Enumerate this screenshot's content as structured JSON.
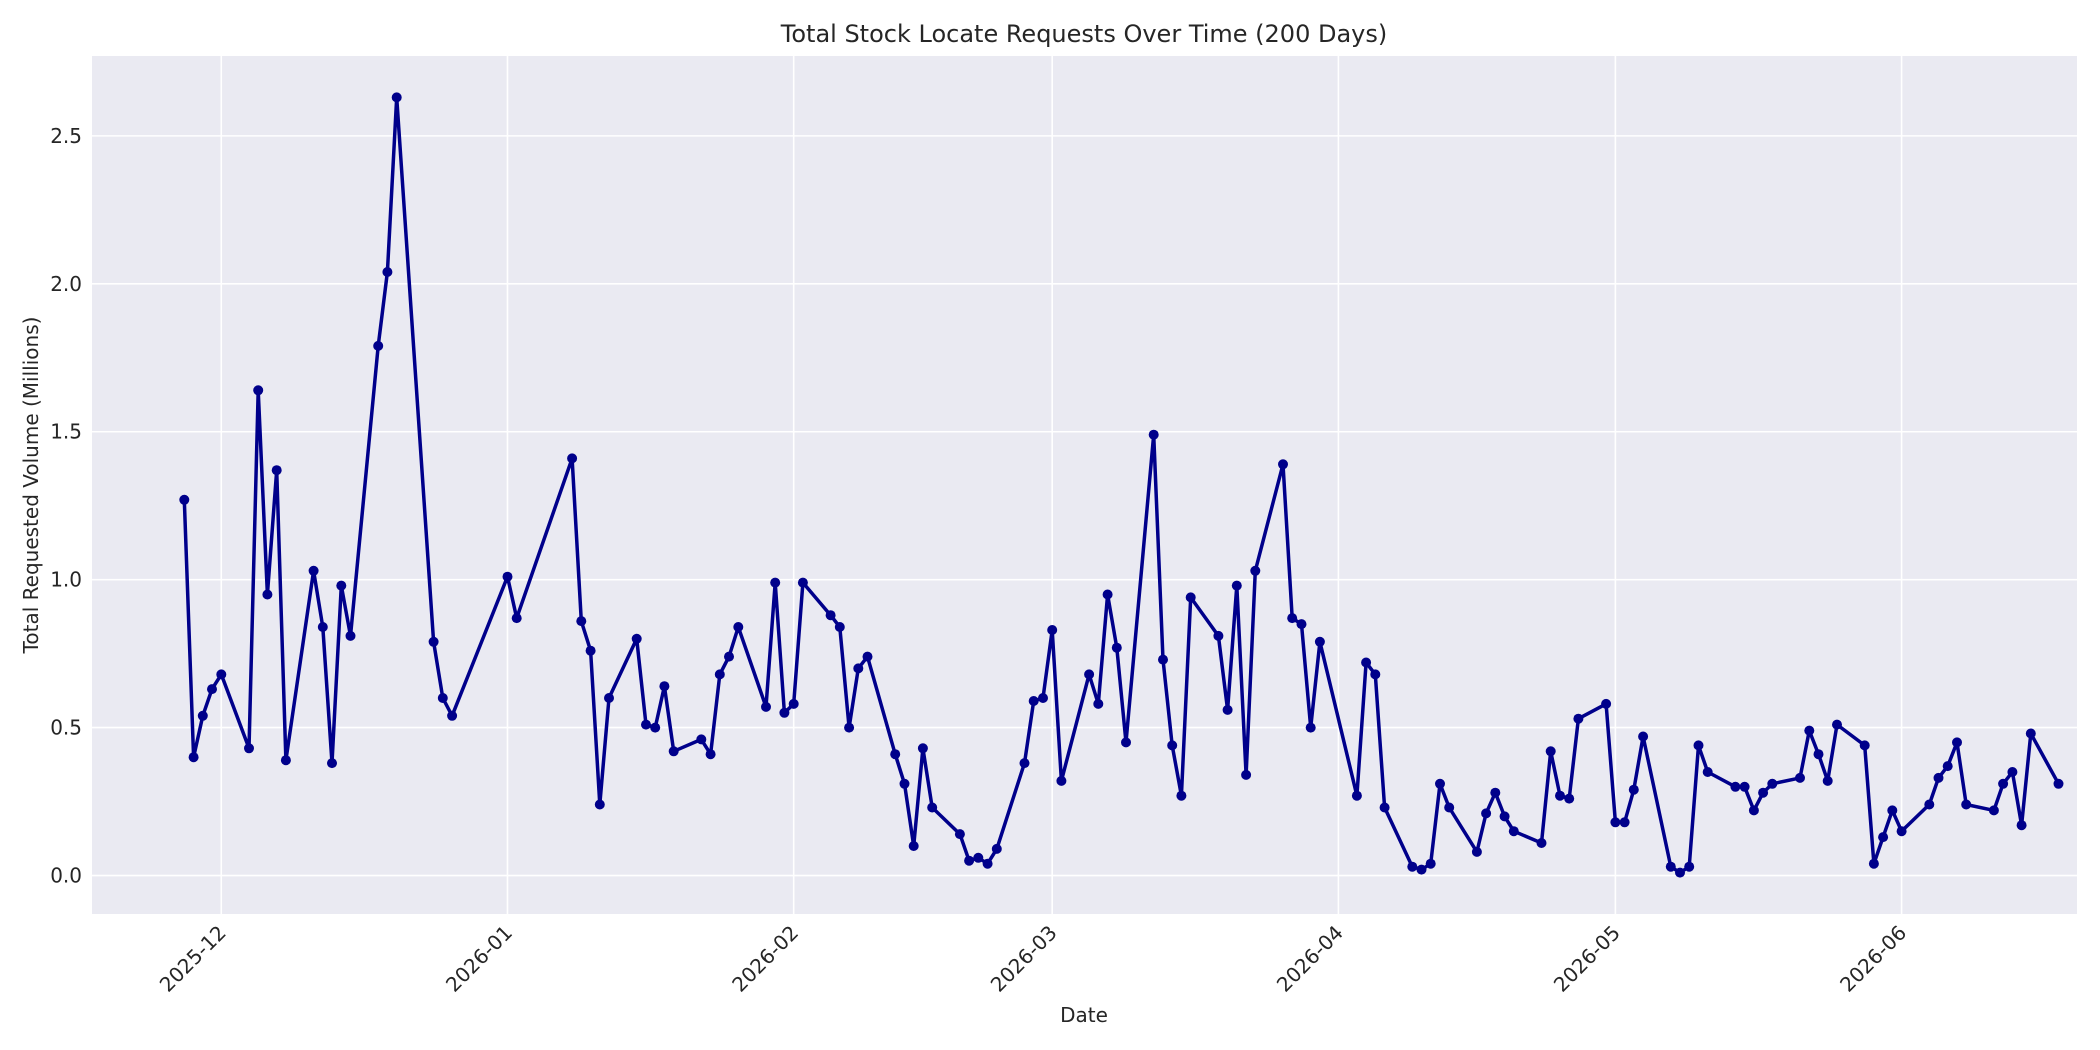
{
  "chart_data": {
    "type": "line",
    "title": "Total Stock Locate Requests Over Time (200 Days)",
    "xlabel": "Date",
    "ylabel": "Total Requested Volume (Millions)",
    "x_tick_labels": [
      "2025-12",
      "2026-01",
      "2026-02",
      "2026-03",
      "2026-04",
      "2026-05",
      "2026-06"
    ],
    "x_tick_dates": [
      "2025-12-01",
      "2026-01-01",
      "2026-02-01",
      "2026-03-01",
      "2026-04-01",
      "2026-05-01",
      "2026-06-01"
    ],
    "y_tick_labels": [
      "0.0",
      "0.5",
      "1.0",
      "1.5",
      "2.0",
      "2.5"
    ],
    "y_tick_values": [
      0.0,
      0.5,
      1.0,
      1.5,
      2.0,
      2.5
    ],
    "xlim": [
      "2025-11-17",
      "2026-06-20"
    ],
    "ylim": [
      -0.13,
      2.77
    ],
    "grid": true,
    "colors": {
      "line": "#00008B",
      "background": "#EAEAF2",
      "grid": "#FFFFFF"
    },
    "series": [
      {
        "x": [
          "2025-11-27",
          "2025-11-28",
          "2025-11-29",
          "2025-11-30",
          "2025-12-01",
          "2025-12-04",
          "2025-12-05",
          "2025-12-06",
          "2025-12-07",
          "2025-12-08",
          "2025-12-11",
          "2025-12-12",
          "2025-12-13",
          "2025-12-14",
          "2025-12-15",
          "2025-12-18",
          "2025-12-19",
          "2025-12-20",
          "2025-12-24",
          "2025-12-25",
          "2025-12-26",
          "2026-01-01",
          "2026-01-02",
          "2026-01-08",
          "2026-01-09",
          "2026-01-10",
          "2026-01-11",
          "2026-01-12",
          "2026-01-15",
          "2026-01-16",
          "2026-01-17",
          "2026-01-18",
          "2026-01-19",
          "2026-01-22",
          "2026-01-23",
          "2026-01-24",
          "2026-01-25",
          "2026-01-26",
          "2026-01-29",
          "2026-01-30",
          "2026-01-31",
          "2026-02-01",
          "2026-02-02",
          "2026-02-05",
          "2026-02-06",
          "2026-02-07",
          "2026-02-08",
          "2026-02-09",
          "2026-02-12",
          "2026-02-13",
          "2026-02-14",
          "2026-02-15",
          "2026-02-16",
          "2026-02-19",
          "2026-02-20",
          "2026-02-21",
          "2026-02-22",
          "2026-02-23",
          "2026-02-26",
          "2026-02-27",
          "2026-02-28",
          "2026-03-01",
          "2026-03-02",
          "2026-03-05",
          "2026-03-06",
          "2026-03-07",
          "2026-03-08",
          "2026-03-09",
          "2026-03-12",
          "2026-03-13",
          "2026-03-14",
          "2026-03-15",
          "2026-03-16",
          "2026-03-19",
          "2026-03-20",
          "2026-03-21",
          "2026-03-22",
          "2026-03-23",
          "2026-03-26",
          "2026-03-27",
          "2026-03-28",
          "2026-03-29",
          "2026-03-30",
          "2026-04-03",
          "2026-04-04",
          "2026-04-05",
          "2026-04-06",
          "2026-04-09",
          "2026-04-10",
          "2026-04-11",
          "2026-04-12",
          "2026-04-13",
          "2026-04-16",
          "2026-04-17",
          "2026-04-18",
          "2026-04-19",
          "2026-04-20",
          "2026-04-23",
          "2026-04-24",
          "2026-04-25",
          "2026-04-26",
          "2026-04-27",
          "2026-04-30",
          "2026-05-01",
          "2026-05-02",
          "2026-05-03",
          "2026-05-04",
          "2026-05-07",
          "2026-05-08",
          "2026-05-09",
          "2026-05-10",
          "2026-05-11",
          "2026-05-14",
          "2026-05-15",
          "2026-05-16",
          "2026-05-17",
          "2026-05-18",
          "2026-05-21",
          "2026-05-22",
          "2026-05-23",
          "2026-05-24",
          "2026-05-25",
          "2026-05-28",
          "2026-05-29",
          "2026-05-30",
          "2026-05-31",
          "2026-06-01",
          "2026-06-04",
          "2026-06-05",
          "2026-06-06",
          "2026-06-07",
          "2026-06-08",
          "2026-06-11",
          "2026-06-12",
          "2026-06-13",
          "2026-06-14",
          "2026-06-15",
          "2026-06-18"
        ],
        "y": [
          1.27,
          0.4,
          0.54,
          0.63,
          0.68,
          0.43,
          1.64,
          0.95,
          1.37,
          0.39,
          1.03,
          0.84,
          0.38,
          0.98,
          0.81,
          1.79,
          2.04,
          2.63,
          0.79,
          0.6,
          0.54,
          1.01,
          0.87,
          1.41,
          0.86,
          0.76,
          0.24,
          0.6,
          0.8,
          0.51,
          0.5,
          0.64,
          0.42,
          0.46,
          0.41,
          0.68,
          0.74,
          0.84,
          0.57,
          0.99,
          0.55,
          0.58,
          0.99,
          0.88,
          0.84,
          0.5,
          0.7,
          0.74,
          0.41,
          0.31,
          0.1,
          0.43,
          0.23,
          0.14,
          0.05,
          0.06,
          0.04,
          0.09,
          0.38,
          0.59,
          0.6,
          0.83,
          0.32,
          0.68,
          0.58,
          0.95,
          0.77,
          0.45,
          1.49,
          0.73,
          0.44,
          0.27,
          0.94,
          0.81,
          0.56,
          0.98,
          0.34,
          1.03,
          1.39,
          0.87,
          0.85,
          0.5,
          0.79,
          0.27,
          0.72,
          0.68,
          0.23,
          0.03,
          0.02,
          0.04,
          0.31,
          0.23,
          0.08,
          0.21,
          0.28,
          0.2,
          0.15,
          0.11,
          0.42,
          0.27,
          0.26,
          0.53,
          0.58,
          0.18,
          0.18,
          0.29,
          0.47,
          0.03,
          0.01,
          0.03,
          0.44,
          0.35,
          0.3,
          0.3,
          0.22,
          0.28,
          0.31,
          0.33,
          0.49,
          0.41,
          0.32,
          0.51,
          0.44,
          0.04,
          0.13,
          0.22,
          0.15,
          0.24,
          0.33,
          0.37,
          0.45,
          0.24,
          0.22,
          0.31,
          0.35,
          0.17,
          0.48,
          0.31
        ]
      }
    ]
  }
}
